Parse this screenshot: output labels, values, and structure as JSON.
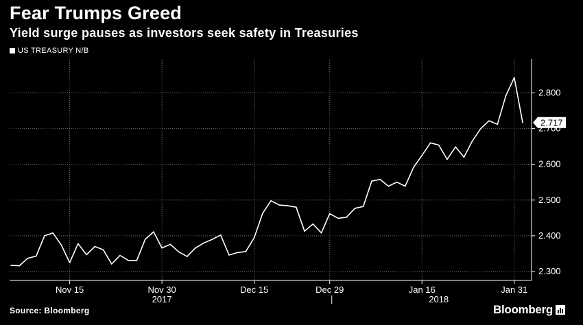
{
  "header": {
    "title": "Fear Trumps Greed",
    "subtitle": "Yield surge pauses as investors seek safety in Treasuries"
  },
  "footer": {
    "source": "Source: Bloomberg",
    "brand": "Bloomberg"
  },
  "colors": {
    "background": "#000000",
    "line": "#ffffff",
    "grid": "#6e6e6e"
  },
  "chart_data": {
    "type": "line",
    "title": "Fear Trumps Greed",
    "subtitle": "Yield surge pauses as investors seek safety in Treasuries",
    "xlabel": "",
    "ylabel": "",
    "ylim": [
      2.275,
      2.895
    ],
    "y_ticks": [
      2.3,
      2.4,
      2.5,
      2.6,
      2.7,
      2.8
    ],
    "y_tick_labels": [
      "2.300",
      "2.400",
      "2.500",
      "2.600",
      "2.700",
      "2.800"
    ],
    "x_ticks": [
      {
        "label": "Nov 15",
        "index": 7
      },
      {
        "label": "Nov 30",
        "index": 18
      },
      {
        "label": "Dec 15",
        "index": 29
      },
      {
        "label": "Dec 29",
        "index": 38
      },
      {
        "label": "Jan 16",
        "index": 49
      },
      {
        "label": "Jan 31",
        "index": 60
      }
    ],
    "year_labels": [
      {
        "label": "2017",
        "index": 18
      },
      {
        "label": "2018",
        "index": 51
      }
    ],
    "year_separator_index": 38,
    "grid": true,
    "legend": "top-left",
    "last_value_label": "2.717",
    "series": [
      {
        "name": "US TREASURY N/B",
        "values": [
          2.317,
          2.316,
          2.337,
          2.343,
          2.4,
          2.408,
          2.374,
          2.325,
          2.378,
          2.347,
          2.37,
          2.361,
          2.321,
          2.345,
          2.331,
          2.331,
          2.39,
          2.411,
          2.366,
          2.376,
          2.355,
          2.342,
          2.366,
          2.38,
          2.39,
          2.402,
          2.346,
          2.353,
          2.356,
          2.395,
          2.463,
          2.498,
          2.486,
          2.484,
          2.48,
          2.413,
          2.433,
          2.408,
          2.462,
          2.449,
          2.452,
          2.477,
          2.482,
          2.553,
          2.558,
          2.539,
          2.55,
          2.539,
          2.592,
          2.625,
          2.66,
          2.654,
          2.614,
          2.649,
          2.62,
          2.665,
          2.7,
          2.722,
          2.712,
          2.792,
          2.843,
          2.717
        ]
      }
    ]
  }
}
